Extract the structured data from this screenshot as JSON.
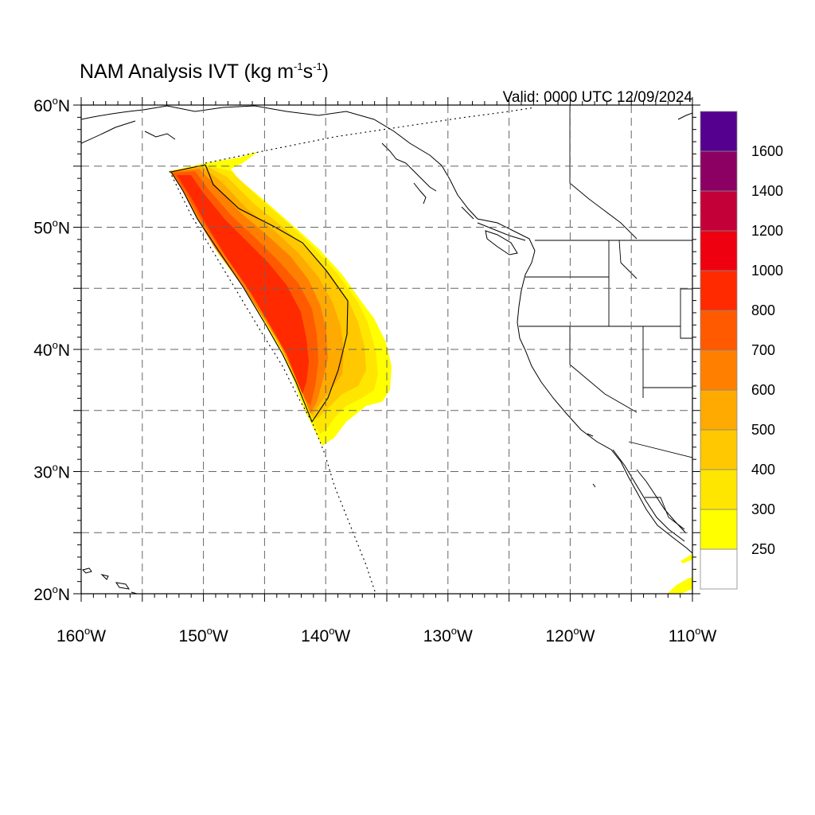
{
  "title": {
    "prefix": "NAM Analysis IVT (kg m",
    "exp1": "-1",
    "mid": "s",
    "exp2": "-1",
    "suffix": ")"
  },
  "valid_label": "Valid: 0000 UTC 12/09/2024",
  "map": {
    "projection": "cylindrical-equidistant",
    "lon_range": [
      -160,
      -110
    ],
    "lat_range": [
      20,
      60
    ],
    "gridlines": "dashed",
    "lat_ticks": [
      {
        "value": 60,
        "label": "60",
        "hemi": "N"
      },
      {
        "value": 50,
        "label": "50",
        "hemi": "N"
      },
      {
        "value": 40,
        "label": "40",
        "hemi": "N"
      },
      {
        "value": 30,
        "label": "30",
        "hemi": "N"
      },
      {
        "value": 20,
        "label": "20",
        "hemi": "N"
      }
    ],
    "lon_ticks": [
      {
        "value": -160,
        "label": "160",
        "hemi": "W"
      },
      {
        "value": -150,
        "label": "150",
        "hemi": "W"
      },
      {
        "value": -140,
        "label": "140",
        "hemi": "W"
      },
      {
        "value": -130,
        "label": "130",
        "hemi": "W"
      },
      {
        "value": -120,
        "label": "120",
        "hemi": "W"
      },
      {
        "value": -110,
        "label": "110",
        "hemi": "W"
      }
    ]
  },
  "colorbar": {
    "levels": [
      {
        "label": "250",
        "color": "#ffffff"
      },
      {
        "label": "300",
        "color": "#ffff00"
      },
      {
        "label": "400",
        "color": "#ffe600"
      },
      {
        "label": "500",
        "color": "#ffc800"
      },
      {
        "label": "600",
        "color": "#ffaa00"
      },
      {
        "label": "700",
        "color": "#ff8000"
      },
      {
        "label": "800",
        "color": "#ff5a00"
      },
      {
        "label": "1000",
        "color": "#ff2a00"
      },
      {
        "label": "1200",
        "color": "#ee0010"
      },
      {
        "label": "1400",
        "color": "#c40038"
      },
      {
        "label": "1600",
        "color": "#8c0064"
      },
      {
        "label": "",
        "color": "#560090"
      }
    ]
  },
  "plume_colors": {
    "outer": "#ffff00",
    "yellow": "#ffe600",
    "gold": "#ffc800",
    "orange": "#ffaa00",
    "dark_orange": "#ff8000",
    "red_orange": "#ff5a00",
    "red": "#ff2a00"
  }
}
